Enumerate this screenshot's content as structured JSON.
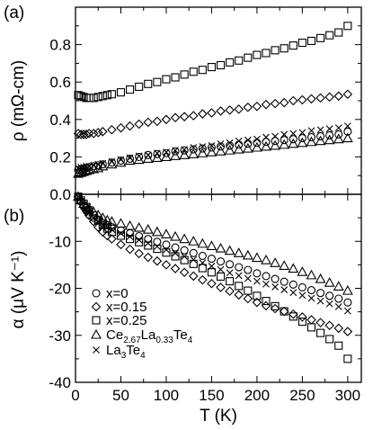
{
  "chart_data": [
    {
      "type": "scatter",
      "panel_label": "(a)",
      "ylabel": "ρ (mΩ-cm)",
      "xlim": [
        0,
        315
      ],
      "ylim": [
        0,
        1.0
      ],
      "x_ticks": [
        0,
        50,
        100,
        150,
        200,
        250,
        300
      ],
      "y_ticks": [
        0.0,
        0.2,
        0.4,
        0.6,
        0.8
      ],
      "y_tick_labels": [
        "0.0",
        "0.2",
        "0.4",
        "0.6",
        "0.8"
      ],
      "series": [
        {
          "name": "x=0",
          "marker": "circle",
          "x": [
            3,
            6,
            9,
            12,
            15,
            20,
            25,
            30,
            40,
            50,
            60,
            70,
            80,
            90,
            100,
            110,
            120,
            130,
            140,
            150,
            160,
            170,
            180,
            190,
            200,
            210,
            220,
            230,
            240,
            250,
            260,
            270,
            280,
            290,
            300
          ],
          "y": [
            0.13,
            0.13,
            0.135,
            0.14,
            0.145,
            0.15,
            0.155,
            0.16,
            0.17,
            0.18,
            0.19,
            0.2,
            0.21,
            0.215,
            0.22,
            0.23,
            0.235,
            0.24,
            0.245,
            0.25,
            0.255,
            0.26,
            0.265,
            0.27,
            0.275,
            0.28,
            0.285,
            0.29,
            0.295,
            0.3,
            0.305,
            0.31,
            0.315,
            0.32,
            0.335
          ]
        },
        {
          "name": "x=0.15",
          "marker": "diamond",
          "x": [
            3,
            6,
            9,
            12,
            15,
            20,
            25,
            30,
            40,
            50,
            60,
            70,
            80,
            90,
            100,
            110,
            120,
            130,
            140,
            150,
            160,
            170,
            180,
            190,
            200,
            210,
            220,
            230,
            240,
            250,
            260,
            270,
            280,
            290,
            300
          ],
          "y": [
            0.325,
            0.32,
            0.32,
            0.32,
            0.325,
            0.325,
            0.33,
            0.335,
            0.345,
            0.355,
            0.365,
            0.375,
            0.385,
            0.39,
            0.4,
            0.41,
            0.415,
            0.42,
            0.43,
            0.435,
            0.445,
            0.45,
            0.455,
            0.465,
            0.47,
            0.48,
            0.485,
            0.49,
            0.5,
            0.505,
            0.51,
            0.515,
            0.52,
            0.525,
            0.535
          ]
        },
        {
          "name": "x=0.25",
          "marker": "square",
          "x": [
            3,
            6,
            9,
            12,
            15,
            20,
            25,
            30,
            35,
            40,
            50,
            60,
            70,
            80,
            90,
            100,
            110,
            120,
            130,
            140,
            150,
            160,
            170,
            180,
            190,
            200,
            210,
            220,
            230,
            240,
            250,
            260,
            270,
            280,
            290,
            300
          ],
          "y": [
            0.53,
            0.525,
            0.52,
            0.515,
            0.515,
            0.515,
            0.52,
            0.525,
            0.53,
            0.535,
            0.545,
            0.56,
            0.575,
            0.59,
            0.6,
            0.615,
            0.625,
            0.64,
            0.655,
            0.665,
            0.68,
            0.69,
            0.705,
            0.715,
            0.73,
            0.745,
            0.755,
            0.77,
            0.78,
            0.795,
            0.81,
            0.82,
            0.835,
            0.85,
            0.865,
            0.9
          ]
        },
        {
          "name": "Ce2.67La0.33Te4",
          "marker": "triangle",
          "x": [
            3,
            6,
            9,
            12,
            15,
            20,
            25,
            30,
            40,
            50,
            60,
            70,
            80,
            90,
            100,
            110,
            120,
            130,
            140,
            150,
            160,
            170,
            180,
            190,
            200,
            210,
            220,
            230,
            240,
            250,
            260,
            270,
            280,
            290,
            300
          ],
          "y": [
            0.11,
            0.115,
            0.12,
            0.125,
            0.13,
            0.135,
            0.14,
            0.15,
            0.16,
            0.17,
            0.18,
            0.185,
            0.19,
            0.195,
            0.2,
            0.205,
            0.21,
            0.215,
            0.22,
            0.225,
            0.23,
            0.235,
            0.24,
            0.245,
            0.25,
            0.255,
            0.26,
            0.265,
            0.27,
            0.275,
            0.28,
            0.285,
            0.29,
            0.295,
            0.3
          ]
        },
        {
          "name": "La3Te4",
          "marker": "x",
          "x": [
            3,
            6,
            9,
            12,
            15,
            20,
            25,
            30,
            40,
            50,
            60,
            70,
            80,
            90,
            100,
            110,
            120,
            130,
            140,
            150,
            160,
            170,
            180,
            190,
            200,
            210,
            220,
            230,
            240,
            250,
            260,
            270,
            280,
            290,
            300
          ],
          "y": [
            0.14,
            0.145,
            0.145,
            0.15,
            0.15,
            0.155,
            0.16,
            0.165,
            0.175,
            0.185,
            0.195,
            0.205,
            0.21,
            0.22,
            0.225,
            0.235,
            0.24,
            0.25,
            0.255,
            0.26,
            0.27,
            0.275,
            0.285,
            0.29,
            0.295,
            0.305,
            0.31,
            0.32,
            0.325,
            0.33,
            0.34,
            0.345,
            0.35,
            0.355,
            0.365
          ]
        }
      ]
    },
    {
      "type": "scatter",
      "panel_label": "(b)",
      "xlabel": "T (K)",
      "ylabel": "α (μV K⁻¹)",
      "xlim": [
        0,
        315
      ],
      "ylim": [
        -40,
        0
      ],
      "x_ticks": [
        0,
        50,
        100,
        150,
        200,
        250,
        300
      ],
      "x_tick_labels": [
        "0",
        "50",
        "100",
        "150",
        "200",
        "250",
        "300"
      ],
      "y_ticks": [
        -40,
        -30,
        -20,
        -10
      ],
      "y_tick_labels": [
        "-40",
        "-30",
        "-20",
        "-10"
      ],
      "legend": {
        "placement": "lower-left",
        "entries": [
          {
            "marker": "circle",
            "label": "x=0"
          },
          {
            "marker": "diamond",
            "label": "x=0.15"
          },
          {
            "marker": "square",
            "label": "x=0.25"
          },
          {
            "marker": "triangle",
            "label": "Ce",
            "sub1": "2.67",
            "mid": "La",
            "sub2": "0.33",
            "end": "Te",
            "sub3": "4"
          },
          {
            "marker": "x",
            "label": "La",
            "sub1": "3",
            "mid": "Te",
            "sub2": "4"
          }
        ]
      },
      "series": [
        {
          "name": "x=0",
          "marker": "circle",
          "x": [
            3,
            6,
            9,
            12,
            15,
            20,
            25,
            30,
            35,
            40,
            50,
            60,
            70,
            80,
            90,
            100,
            110,
            120,
            130,
            140,
            150,
            160,
            170,
            180,
            190,
            200,
            210,
            220,
            230,
            240,
            250,
            260,
            270,
            280,
            290,
            300
          ],
          "y": [
            -0.5,
            -1.5,
            -2.5,
            -3.5,
            -4.3,
            -5.0,
            -5.6,
            -6.1,
            -6.6,
            -7.0,
            -7.7,
            -8.3,
            -8.9,
            -9.5,
            -10.1,
            -10.7,
            -11.3,
            -11.9,
            -12.5,
            -13.1,
            -13.7,
            -14.3,
            -14.9,
            -15.5,
            -16.1,
            -16.8,
            -17.4,
            -18.0,
            -18.6,
            -19.2,
            -19.8,
            -20.4,
            -21.0,
            -21.6,
            -22.2,
            -23.0
          ]
        },
        {
          "name": "x=0.15",
          "marker": "diamond",
          "x": [
            3,
            6,
            9,
            12,
            15,
            20,
            25,
            30,
            35,
            40,
            50,
            60,
            70,
            80,
            90,
            100,
            110,
            120,
            130,
            140,
            150,
            160,
            170,
            180,
            190,
            200,
            210,
            220,
            230,
            240,
            250,
            260,
            270,
            280,
            290,
            300
          ],
          "y": [
            -0.5,
            -1.5,
            -2.5,
            -3.5,
            -4.5,
            -5.8,
            -7.0,
            -8.0,
            -8.8,
            -9.5,
            -10.7,
            -11.7,
            -12.6,
            -13.4,
            -14.2,
            -15.0,
            -15.8,
            -16.6,
            -17.4,
            -18.2,
            -19.0,
            -19.8,
            -20.6,
            -21.4,
            -22.2,
            -23.0,
            -23.7,
            -24.3,
            -24.9,
            -25.5,
            -26.1,
            -26.7,
            -27.3,
            -27.9,
            -28.5,
            -29.2
          ]
        },
        {
          "name": "x=0.25",
          "marker": "square",
          "x": [
            3,
            6,
            9,
            12,
            15,
            20,
            25,
            30,
            35,
            40,
            50,
            60,
            70,
            80,
            90,
            100,
            110,
            120,
            130,
            140,
            150,
            160,
            170,
            180,
            190,
            200,
            210,
            220,
            230,
            240,
            250,
            260,
            270,
            280,
            290,
            300
          ],
          "y": [
            -0.5,
            -1.3,
            -2.0,
            -2.7,
            -3.4,
            -4.5,
            -5.5,
            -6.5,
            -7.3,
            -8.0,
            -8.8,
            -9.5,
            -10.2,
            -10.9,
            -11.6,
            -12.4,
            -13.2,
            -14.0,
            -14.8,
            -15.7,
            -16.6,
            -17.5,
            -18.5,
            -19.5,
            -20.5,
            -21.6,
            -22.7,
            -23.8,
            -24.9,
            -26.0,
            -27.1,
            -28.3,
            -29.5,
            -30.8,
            -32.2,
            -35.0
          ]
        },
        {
          "name": "Ce2.67La0.33Te4",
          "marker": "triangle",
          "x": [
            3,
            6,
            9,
            12,
            15,
            20,
            25,
            30,
            35,
            40,
            50,
            60,
            70,
            80,
            90,
            100,
            110,
            120,
            130,
            140,
            150,
            160,
            170,
            180,
            190,
            200,
            210,
            220,
            230,
            240,
            250,
            260,
            270,
            280,
            290,
            300
          ],
          "y": [
            -0.5,
            -1.2,
            -2.0,
            -2.6,
            -3.1,
            -3.8,
            -4.4,
            -5.0,
            -5.5,
            -5.8,
            -6.2,
            -6.7,
            -7.1,
            -7.5,
            -8.0,
            -8.5,
            -9.0,
            -9.5,
            -10.0,
            -10.5,
            -11.0,
            -11.5,
            -12.0,
            -12.5,
            -13.0,
            -13.5,
            -14.0,
            -14.6,
            -15.2,
            -15.8,
            -16.5,
            -17.2,
            -18.0,
            -18.8,
            -19.6,
            -20.5
          ]
        },
        {
          "name": "La3Te4",
          "marker": "x",
          "x": [
            3,
            6,
            9,
            12,
            15,
            20,
            25,
            30,
            35,
            40,
            50,
            60,
            70,
            80,
            90,
            100,
            110,
            120,
            130,
            140,
            150,
            160,
            170,
            180,
            190,
            200,
            210,
            220,
            230,
            240,
            250,
            260,
            270,
            280,
            290,
            300
          ],
          "y": [
            -0.5,
            -1.5,
            -2.5,
            -3.3,
            -4.0,
            -5.0,
            -5.8,
            -6.5,
            -7.0,
            -7.5,
            -8.3,
            -9.0,
            -9.7,
            -10.4,
            -11.1,
            -11.8,
            -12.5,
            -13.2,
            -13.9,
            -14.6,
            -15.3,
            -16.0,
            -16.7,
            -17.3,
            -17.9,
            -18.5,
            -19.1,
            -19.7,
            -20.3,
            -20.9,
            -21.5,
            -22.1,
            -22.7,
            -23.3,
            -23.9,
            -24.8
          ]
        }
      ]
    }
  ]
}
